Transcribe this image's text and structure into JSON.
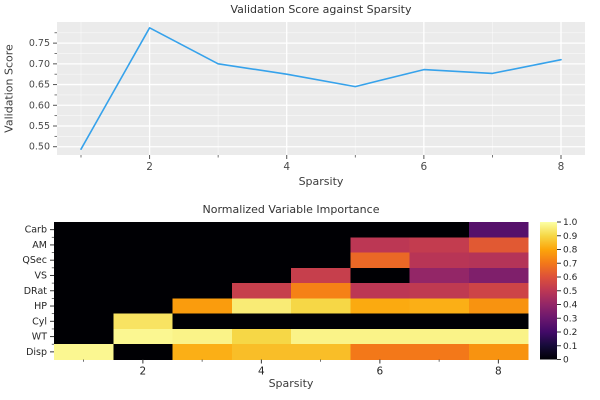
{
  "style": {
    "figure_background": "#ffffff",
    "plot_background": "#ebebeb",
    "grid_major_color": "#ffffff",
    "grid_minor_color": "#ffffff",
    "tick_color": "#555555",
    "tick_label_color": "#4a4a4a",
    "heat_label_color": "#262626",
    "line_color": "#36a2eb"
  },
  "chart_data": [
    {
      "type": "line",
      "title": "Validation Score against Sparsity",
      "xlabel": "Sparsity",
      "ylabel": "Validation Score",
      "x": [
        1,
        2,
        3,
        4,
        5,
        6,
        7,
        8
      ],
      "y": [
        0.494,
        0.787,
        0.7,
        0.675,
        0.645,
        0.686,
        0.677,
        0.71
      ],
      "xlim": [
        0.65,
        8.35
      ],
      "ylim": [
        0.48,
        0.801
      ],
      "x_ticks": [
        2,
        4,
        6,
        8
      ],
      "x_tick_labels": [
        "2",
        "4",
        "6",
        "8"
      ],
      "x_minor_ticks": [
        1,
        3,
        5,
        7
      ],
      "y_ticks": [
        0.5,
        0.55,
        0.6,
        0.65,
        0.7,
        0.75
      ],
      "y_tick_labels": [
        "0.50",
        "0.55",
        "0.60",
        "0.65",
        "0.70",
        "0.75"
      ],
      "y_minor_ticks": [
        0.525,
        0.575,
        0.625,
        0.675,
        0.725,
        0.775
      ],
      "grid": true,
      "legend": "none",
      "line_color": "#36a2eb",
      "plot_background": "#ebebeb"
    },
    {
      "type": "heatmap",
      "title": "Normalized Variable Importance",
      "xlabel": "Sparsity",
      "rows": [
        "Carb",
        "AM",
        "QSec",
        "VS",
        "DRat",
        "HP",
        "Cyl",
        "WT",
        "Disp"
      ],
      "x": [
        1,
        2,
        3,
        4,
        5,
        6,
        7,
        8
      ],
      "x_ticks": [
        2,
        4,
        6,
        8
      ],
      "x_tick_labels": [
        "2",
        "4",
        "6",
        "8"
      ],
      "x_minor_ticks": [
        1,
        3,
        5,
        7
      ],
      "values": [
        [
          0,
          0,
          0,
          0,
          0,
          0,
          0,
          0.25
        ],
        [
          0,
          0,
          0,
          0,
          0,
          0.5,
          0.52,
          0.62
        ],
        [
          0,
          0,
          0,
          0,
          0,
          0.66,
          0.49,
          0.48
        ],
        [
          0,
          0,
          0,
          0,
          0.53,
          0,
          0.4,
          0.35
        ],
        [
          0,
          0,
          0,
          0.53,
          0.72,
          0.5,
          0.51,
          0.55
        ],
        [
          0,
          0,
          0.78,
          0.95,
          0.9,
          0.81,
          0.82,
          0.76
        ],
        [
          0,
          0.93,
          0,
          0,
          0,
          0,
          0,
          0
        ],
        [
          0,
          0.98,
          0.97,
          0.9,
          0.97,
          0.97,
          0.97,
          0.97
        ],
        [
          0.98,
          0,
          0.82,
          0.85,
          0.85,
          0.7,
          0.7,
          0.76
        ]
      ],
      "colormap": "inferno",
      "vmin": 0,
      "vmax": 1,
      "colorbar_ticks": [
        1.0,
        0.9,
        0.8,
        0.7,
        0.6,
        0.5,
        0.4,
        0.3,
        0.2,
        0.1,
        0
      ],
      "colorbar_tick_labels": [
        "1.0",
        "0.9",
        "0.8",
        "0.7",
        "0.6",
        "0.5",
        "0.4",
        "0.3",
        "0.2",
        "0.1",
        "0"
      ]
    }
  ]
}
